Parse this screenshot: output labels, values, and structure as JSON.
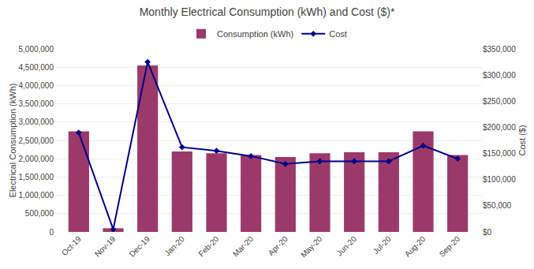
{
  "chart_data": {
    "type": "bar",
    "title": "Monthly Electrical Consumption (kWh) and Cost ($)*",
    "categories": [
      "Oct-19",
      "Nov-19",
      "Dec-19",
      "Jan-20",
      "Feb-20",
      "Mar-20",
      "Apr-20",
      "May-20",
      "Jun-20",
      "Jul-20",
      "Aug-20",
      "Sep-20"
    ],
    "series": [
      {
        "name": "Consumption (kWh)",
        "type": "bar",
        "color": "#9B3A6A",
        "values": [
          2750000,
          100000,
          4550000,
          2200000,
          2150000,
          2100000,
          2050000,
          2150000,
          2175000,
          2175000,
          2750000,
          2100000
        ]
      },
      {
        "name": "Cost",
        "type": "line",
        "axis": "y2",
        "color": "#00008B",
        "marker": "diamond",
        "values": [
          190000,
          5000,
          325000,
          162000,
          155000,
          145000,
          130000,
          135000,
          135000,
          135000,
          165000,
          140000
        ]
      }
    ],
    "ylabel": "Electrical Consumption (kWh)",
    "y2label": "Cost ($)",
    "ylim": [
      0,
      5000000
    ],
    "yticks": [
      0,
      {
        "value": 500000,
        "label": "500,000"
      },
      {
        "value": 1000000,
        "label": "1,000,000"
      },
      {
        "value": 1500000,
        "label": "1,500,000"
      },
      {
        "value": 2000000,
        "label": "2,000,000"
      },
      {
        "value": 2500000,
        "label": "2,500,000"
      },
      {
        "value": 3000000,
        "label": "3,000,000"
      },
      {
        "value": 3500000,
        "label": "3,500,000"
      },
      {
        "value": 4000000,
        "label": "4,000,000"
      },
      {
        "value": 4500000,
        "label": "4,500,000"
      },
      {
        "value": 5000000,
        "label": "5,000,000"
      }
    ],
    "y2lim": [
      0,
      350000
    ],
    "y2ticks": [
      {
        "value": 0,
        "label": "$0"
      },
      {
        "value": 50000,
        "label": "$50,000"
      },
      {
        "value": 100000,
        "label": "$100,000"
      },
      {
        "value": 150000,
        "label": "$150,000"
      },
      {
        "value": 200000,
        "label": "$200,000"
      },
      {
        "value": 250000,
        "label": "$250,000"
      },
      {
        "value": 300000,
        "label": "$300,000"
      },
      {
        "value": 350000,
        "label": "$350,000"
      }
    ],
    "grid": true,
    "legend": "top"
  }
}
